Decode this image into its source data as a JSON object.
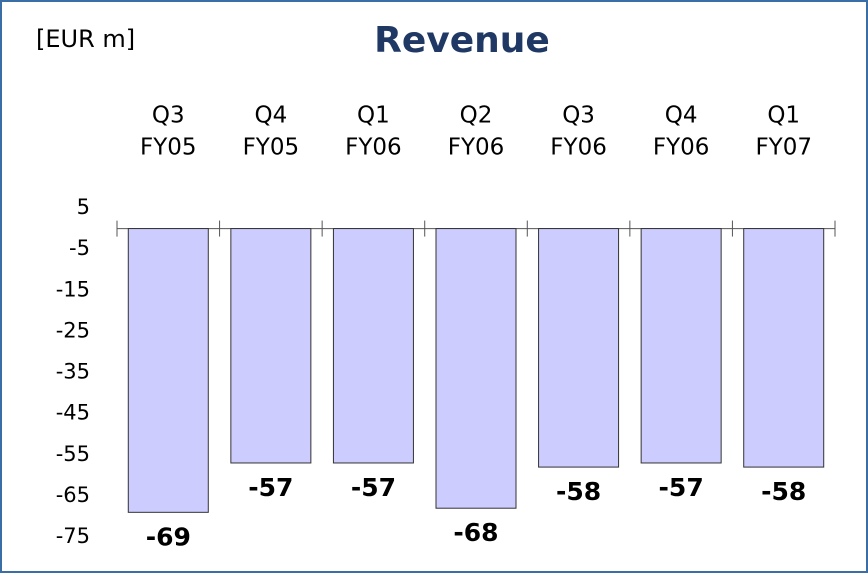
{
  "chart_data": {
    "type": "bar",
    "title": "Revenue",
    "unit_label": "[EUR m]",
    "categories": [
      [
        "Q3",
        "FY05"
      ],
      [
        "Q4",
        "FY05"
      ],
      [
        "Q1",
        "FY06"
      ],
      [
        "Q2",
        "FY06"
      ],
      [
        "Q3",
        "FY06"
      ],
      [
        "Q4",
        "FY06"
      ],
      [
        "Q1",
        "FY07"
      ]
    ],
    "values": [
      -69,
      -57,
      -57,
      -68,
      -58,
      -57,
      -58
    ],
    "color": "#ccccff",
    "ylim": [
      -75,
      5
    ],
    "yticks": [
      5,
      -5,
      -15,
      -25,
      -35,
      -45,
      -55,
      -65,
      -75
    ],
    "grid": false
  }
}
